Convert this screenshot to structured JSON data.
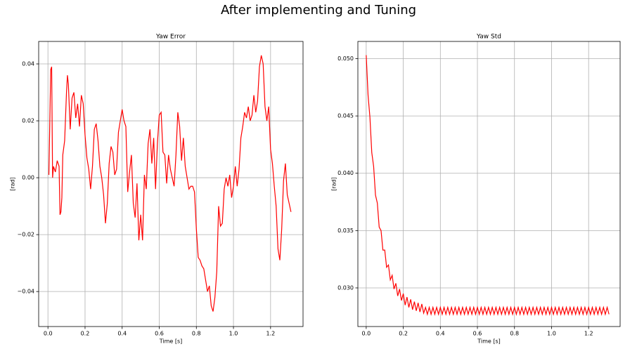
{
  "title": "After implementing and Tuning",
  "chart_data": [
    {
      "type": "line",
      "title": "Yaw Error",
      "xlabel": "Time [s]",
      "ylabel": "[rad]",
      "grid": true,
      "xlim": [
        -0.05,
        1.375
      ],
      "ylim": [
        -0.0523,
        0.0479
      ],
      "xticks": [
        {
          "value": 0,
          "label": "0.0"
        },
        {
          "value": 0.2,
          "label": "0.2"
        },
        {
          "value": 0.4,
          "label": "0.4"
        },
        {
          "value": 0.6,
          "label": "0.6"
        },
        {
          "value": 0.8,
          "label": "0.8"
        },
        {
          "value": 1.0,
          "label": "1.0"
        },
        {
          "value": 1.2,
          "label": "1.2"
        }
      ],
      "yticks": [
        {
          "value": -0.04,
          "label": "−0.04"
        },
        {
          "value": -0.02,
          "label": "−0.02"
        },
        {
          "value": 0,
          "label": "0.00"
        },
        {
          "value": 0.02,
          "label": "0.02"
        },
        {
          "value": 0.04,
          "label": "0.04"
        }
      ],
      "x": [
        0.005,
        0.015,
        0.02,
        0.025,
        0.03,
        0.04,
        0.05,
        0.06,
        0.065,
        0.07,
        0.075,
        0.08,
        0.09,
        0.1,
        0.105,
        0.11,
        0.12,
        0.13,
        0.14,
        0.15,
        0.16,
        0.17,
        0.18,
        0.19,
        0.2,
        0.21,
        0.22,
        0.23,
        0.24,
        0.25,
        0.26,
        0.27,
        0.28,
        0.29,
        0.3,
        0.31,
        0.32,
        0.33,
        0.34,
        0.35,
        0.36,
        0.37,
        0.38,
        0.39,
        0.4,
        0.41,
        0.42,
        0.43,
        0.44,
        0.45,
        0.46,
        0.47,
        0.48,
        0.49,
        0.5,
        0.51,
        0.52,
        0.53,
        0.54,
        0.55,
        0.56,
        0.57,
        0.58,
        0.59,
        0.6,
        0.61,
        0.62,
        0.63,
        0.64,
        0.65,
        0.66,
        0.67,
        0.68,
        0.69,
        0.7,
        0.71,
        0.72,
        0.73,
        0.74,
        0.75,
        0.76,
        0.77,
        0.78,
        0.79,
        0.8,
        0.81,
        0.82,
        0.83,
        0.84,
        0.85,
        0.86,
        0.87,
        0.88,
        0.89,
        0.9,
        0.91,
        0.92,
        0.93,
        0.94,
        0.95,
        0.96,
        0.97,
        0.98,
        0.99,
        1.0,
        1.01,
        1.02,
        1.03,
        1.04,
        1.05,
        1.06,
        1.07,
        1.08,
        1.09,
        1.1,
        1.11,
        1.12,
        1.13,
        1.14,
        1.15,
        1.16,
        1.17,
        1.18,
        1.19,
        1.2,
        1.21,
        1.22,
        1.23,
        1.24,
        1.25,
        1.26,
        1.27,
        1.28,
        1.29,
        1.3,
        1.31
      ],
      "series": [
        {
          "color": "#ff0000",
          "values": [
            0.001,
            0.038,
            0.039,
            0.0,
            0.004,
            0.002,
            0.006,
            0.004,
            -0.013,
            -0.012,
            -0.007,
            0.008,
            0.013,
            0.03,
            0.036,
            0.033,
            0.017,
            0.028,
            0.03,
            0.021,
            0.026,
            0.018,
            0.029,
            0.026,
            0.015,
            0.007,
            0.003,
            -0.004,
            0.004,
            0.017,
            0.019,
            0.013,
            0.004,
            0.0,
            -0.006,
            -0.016,
            -0.009,
            0.005,
            0.011,
            0.009,
            0.001,
            0.003,
            0.016,
            0.02,
            0.024,
            0.02,
            0.018,
            -0.005,
            0.002,
            0.008,
            -0.009,
            -0.014,
            -0.002,
            -0.022,
            -0.013,
            -0.022,
            0.001,
            -0.004,
            0.012,
            0.017,
            0.005,
            0.014,
            -0.004,
            0.012,
            0.022,
            0.023,
            0.009,
            0.008,
            -0.002,
            0.008,
            0.003,
            0.0,
            -0.003,
            0.008,
            0.023,
            0.018,
            0.006,
            0.014,
            0.004,
            0.0,
            -0.004,
            -0.003,
            -0.003,
            -0.005,
            -0.018,
            -0.028,
            -0.029,
            -0.031,
            -0.032,
            -0.036,
            -0.04,
            -0.038,
            -0.045,
            -0.047,
            -0.042,
            -0.033,
            -0.01,
            -0.017,
            -0.016,
            -0.004,
            0.0,
            -0.003,
            0.001,
            -0.007,
            -0.003,
            0.004,
            -0.003,
            0.003,
            0.014,
            0.018,
            0.023,
            0.021,
            0.025,
            0.02,
            0.022,
            0.029,
            0.023,
            0.027,
            0.039,
            0.043,
            0.04,
            0.025,
            0.02,
            0.025,
            0.01,
            0.005,
            -0.003,
            -0.01,
            -0.025,
            -0.029,
            -0.018,
            -0.001,
            0.005,
            -0.006,
            -0.009,
            -0.012
          ]
        }
      ]
    },
    {
      "type": "line",
      "title": "Yaw Std",
      "xlabel": "Time [s]",
      "ylabel": "[rad]",
      "grid": true,
      "xlim": [
        -0.045,
        1.37
      ],
      "ylim": [
        0.02663,
        0.0515
      ],
      "xticks": [
        {
          "value": 0,
          "label": "0.0"
        },
        {
          "value": 0.2,
          "label": "0.2"
        },
        {
          "value": 0.4,
          "label": "0.4"
        },
        {
          "value": 0.6,
          "label": "0.6"
        },
        {
          "value": 0.8,
          "label": "0.8"
        },
        {
          "value": 1.0,
          "label": "1.0"
        },
        {
          "value": 1.2,
          "label": "1.2"
        }
      ],
      "yticks": [
        {
          "value": 0.03,
          "label": "0.030"
        },
        {
          "value": 0.035,
          "label": "0.035"
        },
        {
          "value": 0.04,
          "label": "0.040"
        },
        {
          "value": 0.045,
          "label": "0.045"
        },
        {
          "value": 0.05,
          "label": "0.050"
        }
      ],
      "x": [
        0,
        0.01,
        0.02,
        0.03,
        0.04,
        0.05,
        0.06,
        0.07,
        0.08,
        0.09,
        0.1,
        0.11,
        0.12,
        0.13,
        0.14,
        0.15,
        0.16,
        0.17,
        0.18,
        0.19,
        0.2,
        0.21,
        0.22,
        0.23,
        0.24,
        0.25,
        0.26,
        0.27,
        0.28,
        0.29,
        0.3,
        0.31,
        0.32,
        0.33,
        0.34,
        0.35,
        0.36,
        0.37,
        0.38,
        0.39,
        0.4,
        0.41,
        0.42,
        0.43,
        0.44,
        0.45,
        0.46,
        0.47,
        0.48,
        0.49,
        0.5,
        0.51,
        0.52,
        0.53,
        0.54,
        0.55,
        0.56,
        0.57,
        0.58,
        0.59,
        0.6,
        0.61,
        0.62,
        0.63,
        0.64,
        0.65,
        0.66,
        0.67,
        0.68,
        0.69,
        0.7,
        0.71,
        0.72,
        0.73,
        0.74,
        0.75,
        0.76,
        0.77,
        0.78,
        0.79,
        0.8,
        0.81,
        0.82,
        0.83,
        0.84,
        0.85,
        0.86,
        0.87,
        0.88,
        0.89,
        0.9,
        0.91,
        0.92,
        0.93,
        0.94,
        0.95,
        0.96,
        0.97,
        0.98,
        0.99,
        1.0,
        1.01,
        1.02,
        1.03,
        1.04,
        1.05,
        1.06,
        1.07,
        1.08,
        1.09,
        1.1,
        1.11,
        1.12,
        1.13,
        1.14,
        1.15,
        1.16,
        1.17,
        1.18,
        1.19,
        1.2,
        1.21,
        1.22,
        1.23,
        1.24,
        1.25,
        1.26,
        1.27,
        1.28,
        1.29,
        1.3,
        1.31
      ],
      "series": [
        {
          "color": "#ff0000",
          "values": [
            0.0503,
            0.0468,
            0.0449,
            0.0418,
            0.0406,
            0.0381,
            0.0374,
            0.0353,
            0.035,
            0.0333,
            0.0333,
            0.0318,
            0.032,
            0.0307,
            0.0311,
            0.0299,
            0.0304,
            0.0293,
            0.0299,
            0.0289,
            0.0295,
            0.0285,
            0.0292,
            0.0283,
            0.029,
            0.0281,
            0.0288,
            0.028,
            0.0287,
            0.0279,
            0.0286,
            0.0278,
            0.0283,
            0.0277,
            0.0283,
            0.0277,
            0.0283,
            0.0277,
            0.0283,
            0.0277,
            0.0283,
            0.0277,
            0.0283,
            0.0277,
            0.0283,
            0.0277,
            0.0283,
            0.0277,
            0.0283,
            0.0277,
            0.0283,
            0.0277,
            0.0283,
            0.0277,
            0.0283,
            0.0277,
            0.0283,
            0.0277,
            0.0283,
            0.0277,
            0.0283,
            0.0277,
            0.0283,
            0.0277,
            0.0283,
            0.0277,
            0.0283,
            0.0277,
            0.0283,
            0.0277,
            0.0283,
            0.0277,
            0.0283,
            0.0277,
            0.0283,
            0.0277,
            0.0283,
            0.0277,
            0.0283,
            0.0277,
            0.0283,
            0.0277,
            0.0283,
            0.0277,
            0.0283,
            0.0277,
            0.0283,
            0.0277,
            0.0283,
            0.0277,
            0.0283,
            0.0277,
            0.0283,
            0.0277,
            0.0283,
            0.0277,
            0.0283,
            0.0277,
            0.0283,
            0.0277,
            0.0283,
            0.0277,
            0.0283,
            0.0277,
            0.0283,
            0.0277,
            0.0283,
            0.0277,
            0.0283,
            0.0277,
            0.0283,
            0.0277,
            0.0283,
            0.0277,
            0.0283,
            0.0277,
            0.0283,
            0.0277,
            0.0283,
            0.0277,
            0.0283,
            0.0277,
            0.0283,
            0.0277,
            0.0283,
            0.0277,
            0.0283,
            0.0277,
            0.0283,
            0.0277,
            0.0283,
            0.0277
          ]
        }
      ]
    }
  ]
}
